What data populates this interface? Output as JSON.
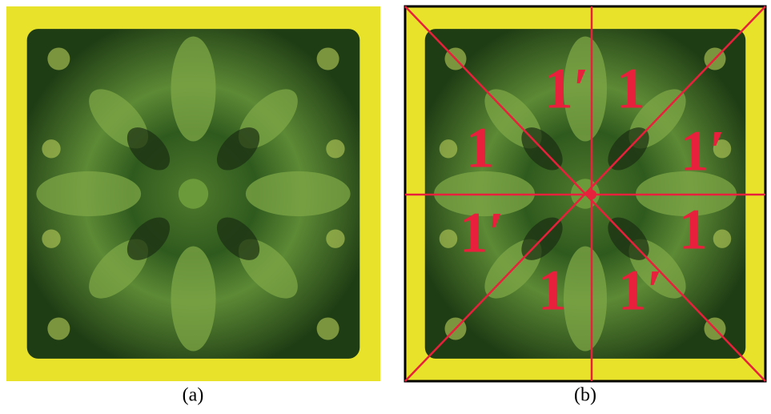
{
  "panels": [
    {
      "caption": "(a)"
    },
    {
      "caption": "(b)",
      "labels": [
        "1′",
        "1",
        "1",
        "1′",
        "1′",
        "1",
        "1",
        "1′"
      ]
    }
  ]
}
